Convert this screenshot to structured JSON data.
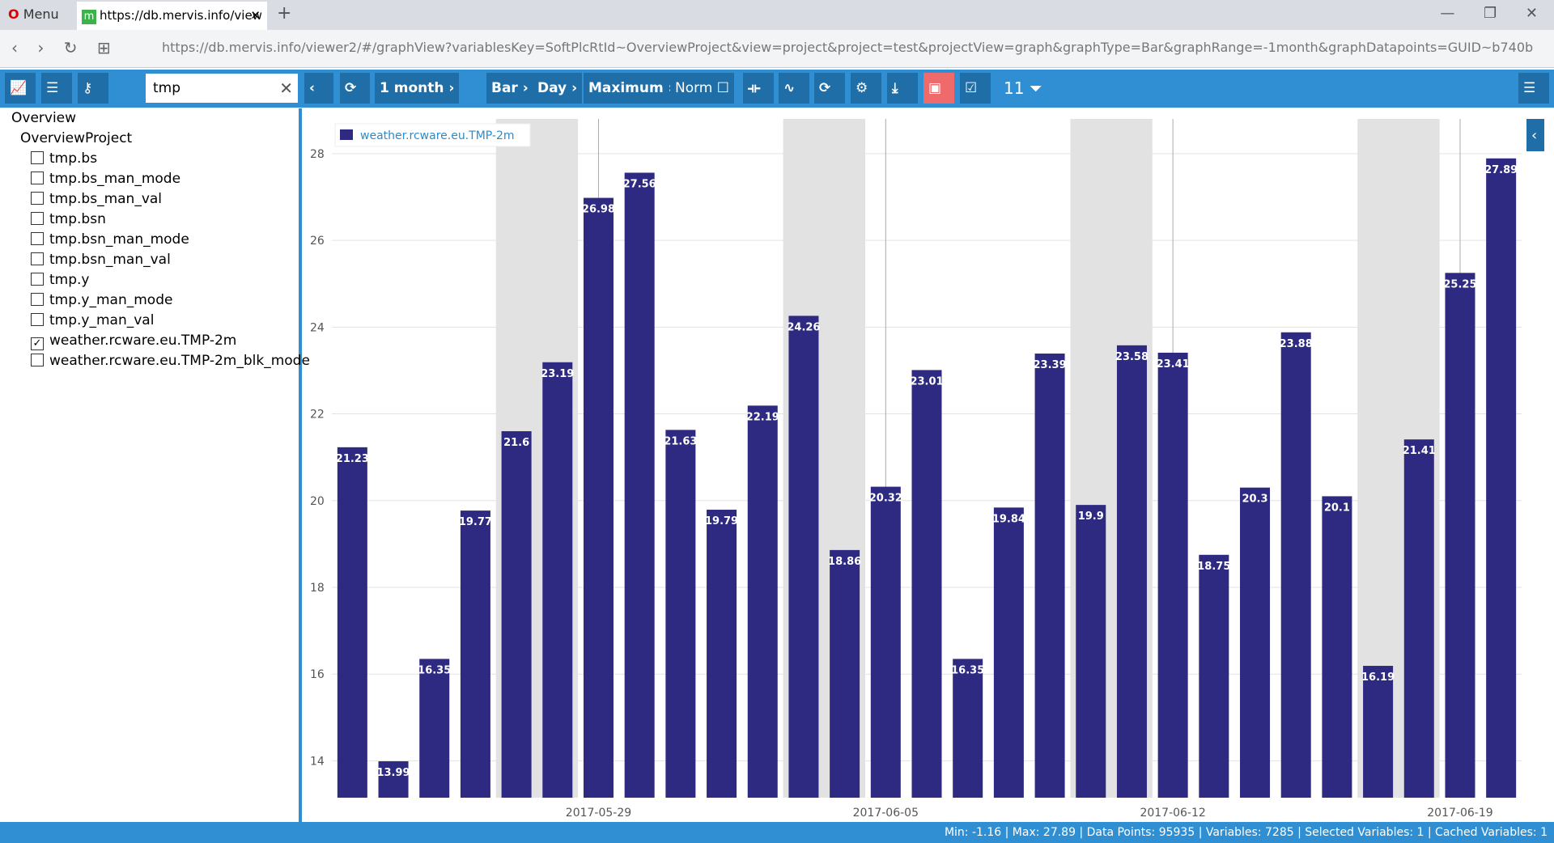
{
  "browser": {
    "menu": "Menu",
    "tab_title": "https://db.mervis.info/view",
    "url": "https://db.mervis.info/viewer2/#/graphView?variablesKey=SoftPlcRtId~OverviewProject&view=project&project=test&projectView=graph&graphType=Bar&graphRange=-1month&graphDatapoints=GUID~b740b"
  },
  "toolbar": {
    "search": "tmp",
    "range": "1 month",
    "graph_type": "Bar",
    "interval": "Day",
    "aggregation": "Maximum",
    "norm": "Norm",
    "filter_count": "11"
  },
  "sidebar": {
    "root": "Overview",
    "project": "OverviewProject",
    "items": [
      {
        "label": "tmp.bs",
        "checked": false
      },
      {
        "label": "tmp.bs_man_mode",
        "checked": false
      },
      {
        "label": "tmp.bs_man_val",
        "checked": false
      },
      {
        "label": "tmp.bsn",
        "checked": false
      },
      {
        "label": "tmp.bsn_man_mode",
        "checked": false
      },
      {
        "label": "tmp.bsn_man_val",
        "checked": false
      },
      {
        "label": "tmp.y",
        "checked": false
      },
      {
        "label": "tmp.y_man_mode",
        "checked": false
      },
      {
        "label": "tmp.y_man_val",
        "checked": false
      },
      {
        "label": "weather.rcware.eu.TMP-2m",
        "checked": true
      },
      {
        "label": "weather.rcware.eu.TMP-2m_blk_mode",
        "checked": false
      }
    ]
  },
  "chart_data": {
    "type": "bar",
    "categories": [
      null,
      null,
      null,
      null,
      null,
      null,
      "2017-05-29",
      null,
      null,
      null,
      null,
      null,
      null,
      "2017-06-05",
      null,
      null,
      null,
      null,
      null,
      null,
      "2017-06-12",
      null,
      null,
      null,
      null,
      null,
      null,
      "2017-06-19",
      null
    ],
    "series": [
      {
        "name": "weather.rcware.eu.TMP-2m",
        "color": "#2e2a82",
        "values": [
          21.23,
          13.99,
          16.35,
          19.77,
          21.6,
          23.19,
          26.98,
          27.56,
          21.63,
          19.79,
          22.19,
          24.26,
          18.86,
          20.32,
          23.01,
          16.35,
          19.84,
          23.39,
          19.9,
          23.58,
          23.41,
          18.75,
          20.3,
          23.88,
          20.1,
          16.19,
          21.41,
          25.25,
          27.89
        ]
      }
    ],
    "ylim": [
      13.15,
      28.8
    ],
    "yticks": [
      14,
      16,
      18,
      20,
      22,
      24,
      26,
      28
    ],
    "grid": true,
    "legend": "top-left"
  },
  "status": "Min: -1.16 | Max: 27.89 | Data Points: 95935 | Variables: 7285 | Selected Variables: 1 | Cached Variables: 1"
}
